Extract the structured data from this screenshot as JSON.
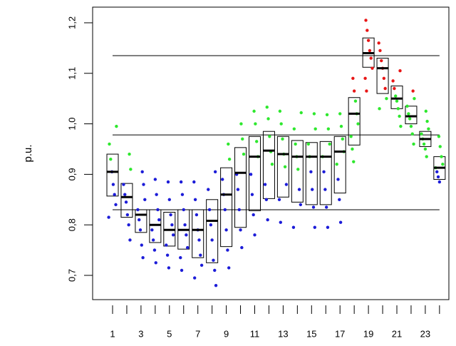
{
  "chart_data": {
    "type": "boxplot",
    "ylabel": "p.u.",
    "categories": [
      "1",
      null,
      "3",
      null,
      "5",
      null,
      "7",
      null,
      "9",
      null,
      "11",
      null,
      "13",
      null,
      "15",
      null,
      "17",
      null,
      "19",
      null,
      "21",
      null,
      "23",
      null
    ],
    "boxes": [
      {
        "q1": 0.857,
        "median": 0.905,
        "q3": 0.94,
        "points": [
          0.815,
          0.84,
          0.86,
          0.88,
          0.905,
          0.93,
          0.96,
          0.995
        ]
      },
      {
        "q1": 0.815,
        "median": 0.855,
        "q3": 0.882,
        "points": [
          0.77,
          0.8,
          0.82,
          0.845,
          0.86,
          0.88,
          0.91,
          0.94
        ]
      },
      {
        "q1": 0.785,
        "median": 0.82,
        "q3": 0.83,
        "points": [
          0.735,
          0.76,
          0.79,
          0.81,
          0.83,
          0.85,
          0.88,
          0.905
        ]
      },
      {
        "q1": 0.765,
        "median": 0.8,
        "q3": 0.83,
        "points": [
          0.725,
          0.75,
          0.77,
          0.79,
          0.81,
          0.83,
          0.86,
          0.89
        ]
      },
      {
        "q1": 0.758,
        "median": 0.79,
        "q3": 0.825,
        "points": [
          0.715,
          0.74,
          0.76,
          0.78,
          0.8,
          0.82,
          0.85,
          0.885
        ]
      },
      {
        "q1": 0.752,
        "median": 0.79,
        "q3": 0.83,
        "points": [
          0.71,
          0.735,
          0.755,
          0.78,
          0.8,
          0.83,
          0.86,
          0.885
        ]
      },
      {
        "q1": 0.735,
        "median": 0.79,
        "q3": 0.83,
        "points": [
          0.695,
          0.72,
          0.74,
          0.77,
          0.79,
          0.82,
          0.85,
          0.885
        ]
      },
      {
        "q1": 0.725,
        "median": 0.808,
        "q3": 0.85,
        "points": [
          0.68,
          0.71,
          0.73,
          0.77,
          0.8,
          0.83,
          0.87,
          0.905
        ]
      },
      {
        "q1": 0.757,
        "median": 0.86,
        "q3": 0.913,
        "points": [
          0.715,
          0.75,
          0.79,
          0.83,
          0.86,
          0.89,
          0.93,
          0.96
        ]
      },
      {
        "q1": 0.795,
        "median": 0.903,
        "q3": 0.953,
        "points": [
          0.755,
          0.79,
          0.83,
          0.87,
          0.9,
          0.94,
          0.97,
          1.0
        ]
      },
      {
        "q1": 0.828,
        "median": 0.935,
        "q3": 0.975,
        "points": [
          0.78,
          0.82,
          0.86,
          0.9,
          0.935,
          0.965,
          1.0,
          1.025
        ]
      },
      {
        "q1": 0.852,
        "median": 0.947,
        "q3": 0.985,
        "points": [
          0.81,
          0.85,
          0.88,
          0.92,
          0.945,
          0.975,
          1.01,
          1.033
        ]
      },
      {
        "q1": 0.855,
        "median": 0.94,
        "q3": 0.975,
        "points": [
          0.805,
          0.85,
          0.88,
          0.915,
          0.94,
          0.97,
          1.0,
          1.025
        ]
      },
      {
        "q1": 0.845,
        "median": 0.935,
        "q3": 0.967,
        "points": [
          0.795,
          0.84,
          0.87,
          0.91,
          0.935,
          0.96,
          0.99,
          1.022
        ]
      },
      {
        "q1": 0.84,
        "median": 0.935,
        "q3": 0.963,
        "points": [
          0.795,
          0.835,
          0.87,
          0.905,
          0.935,
          0.96,
          0.99,
          1.02
        ]
      },
      {
        "q1": 0.84,
        "median": 0.935,
        "q3": 0.965,
        "points": [
          0.795,
          0.835,
          0.87,
          0.905,
          0.935,
          0.96,
          0.99,
          1.018
        ]
      },
      {
        "q1": 0.863,
        "median": 0.945,
        "q3": 0.975,
        "points": [
          0.805,
          0.85,
          0.89,
          0.92,
          0.945,
          0.97,
          0.995,
          1.02
        ]
      },
      {
        "q1": 0.958,
        "median": 1.02,
        "q3": 1.052,
        "points": [
          0.925,
          0.95,
          0.975,
          1.0,
          1.02,
          1.045,
          1.065,
          1.09
        ]
      },
      {
        "q1": 1.112,
        "median": 1.14,
        "q3": 1.17,
        "points": [
          1.065,
          1.09,
          1.11,
          1.13,
          1.145,
          1.165,
          1.185,
          1.205
        ]
      },
      {
        "q1": 1.06,
        "median": 1.11,
        "q3": 1.13,
        "points": [
          1.03,
          1.05,
          1.07,
          1.09,
          1.11,
          1.125,
          1.145,
          1.16
        ]
      },
      {
        "q1": 1.03,
        "median": 1.05,
        "q3": 1.075,
        "points": [
          0.995,
          1.015,
          1.03,
          1.045,
          1.055,
          1.07,
          1.085,
          1.105
        ]
      },
      {
        "q1": 1.0,
        "median": 1.015,
        "q3": 1.035,
        "points": [
          0.96,
          0.98,
          0.995,
          1.01,
          1.02,
          1.035,
          1.05,
          1.065
        ]
      },
      {
        "q1": 0.955,
        "median": 0.97,
        "q3": 0.985,
        "points": [
          0.935,
          0.95,
          0.96,
          0.97,
          0.98,
          0.99,
          1.005,
          1.025
        ]
      },
      {
        "q1": 0.89,
        "median": 0.913,
        "q3": 0.935,
        "points": [
          0.885,
          0.895,
          0.905,
          0.913,
          0.92,
          0.935,
          0.955,
          0.975
        ]
      }
    ],
    "ylim": [
      0.652,
      1.231
    ],
    "yticks": [
      {
        "value": 0.7,
        "label": "0,7"
      },
      {
        "value": 0.8,
        "label": "0,8"
      },
      {
        "value": 0.9,
        "label": "0,9"
      },
      {
        "value": 1.0,
        "label": "1,0"
      },
      {
        "value": 1.1,
        "label": "1,1"
      },
      {
        "value": 1.2,
        "label": "1,2"
      }
    ],
    "hlines": [
      1.135,
      0.978,
      0.83
    ],
    "color_breaks": [
      0.905,
      1.06
    ],
    "point_colors": [
      "#1c1cd8",
      "#2ee82e",
      "#e81616"
    ],
    "box_color": "#000000"
  }
}
